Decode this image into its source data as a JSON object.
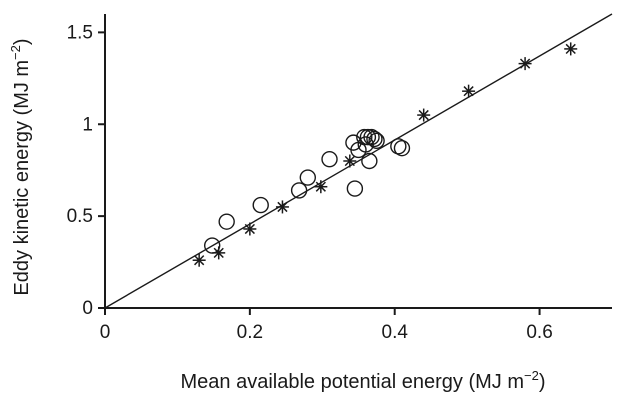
{
  "chart_data": {
    "type": "scatter",
    "xlabel": "Mean available potential energy (MJ m",
    "xlabel_exp": "−2",
    "xlabel_tail": ")",
    "ylabel": "Eddy kinetic energy (MJ m",
    "ylabel_exp": "−2",
    "ylabel_tail": ")",
    "xlim": [
      0,
      0.7
    ],
    "ylim": [
      0,
      1.6
    ],
    "x_ticks": [
      0,
      0.2,
      0.4,
      0.6
    ],
    "x_tick_labels": [
      "0",
      "0.2",
      "0.4",
      "0.6"
    ],
    "y_ticks": [
      0,
      0.5,
      1,
      1.5
    ],
    "y_tick_labels": [
      "0",
      "0.5",
      "1",
      "1.5"
    ],
    "grid": false,
    "legend": "none",
    "series": [
      {
        "marker": "circle",
        "x": [
          0.148,
          0.168,
          0.215,
          0.268,
          0.28,
          0.31,
          0.343,
          0.345,
          0.35,
          0.358,
          0.36,
          0.363,
          0.365,
          0.368,
          0.372,
          0.375,
          0.405,
          0.41
        ],
        "y": [
          0.34,
          0.47,
          0.56,
          0.64,
          0.71,
          0.81,
          0.9,
          0.65,
          0.86,
          0.93,
          0.89,
          0.93,
          0.8,
          0.93,
          0.92,
          0.91,
          0.88,
          0.87
        ]
      },
      {
        "marker": "asterisk",
        "x": [
          0.13,
          0.157,
          0.2,
          0.245,
          0.298,
          0.338,
          0.44,
          0.502,
          0.58,
          0.643
        ],
        "y": [
          0.26,
          0.3,
          0.43,
          0.55,
          0.66,
          0.8,
          1.05,
          1.18,
          1.33,
          1.41
        ]
      }
    ],
    "fit_line": {
      "x": [
        0,
        0.7
      ],
      "y": [
        0,
        1.6
      ]
    }
  }
}
